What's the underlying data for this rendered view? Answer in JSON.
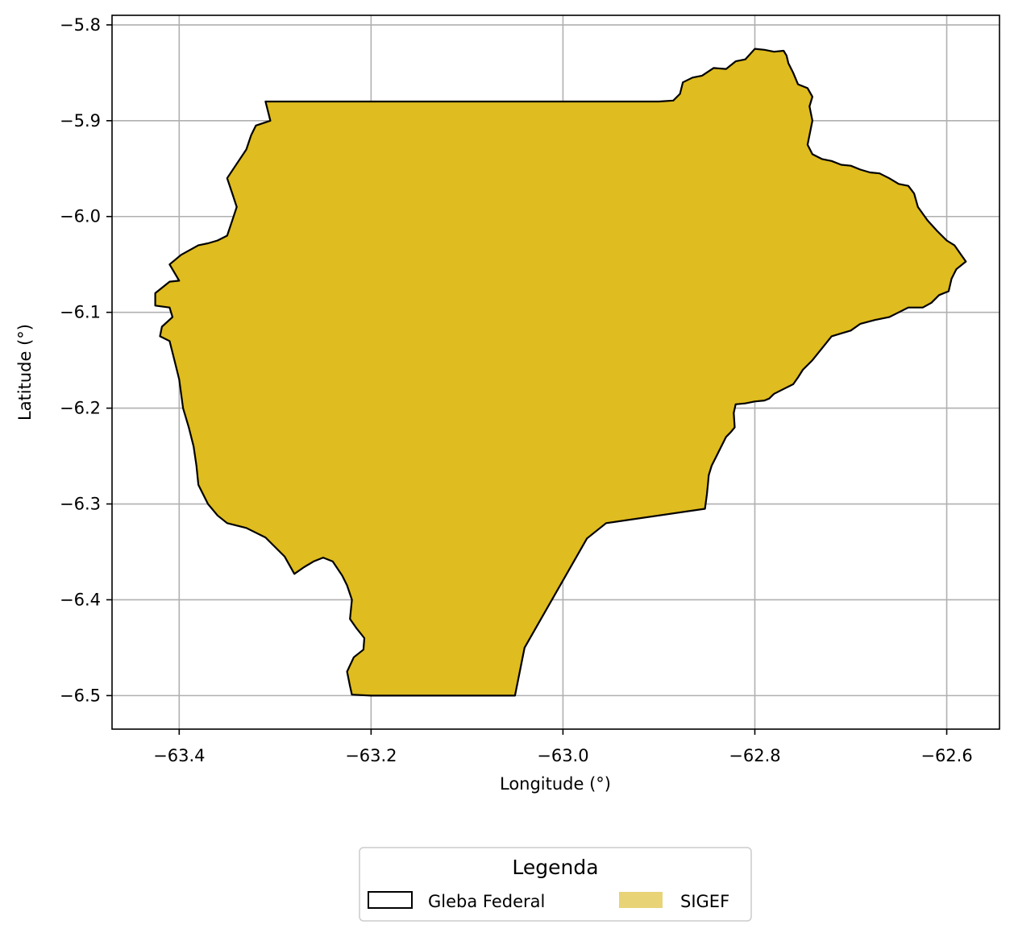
{
  "chart_data": {
    "type": "map",
    "xlabel": "Longitude (°)",
    "ylabel": "Latitude (°)",
    "xlim": [
      -63.47,
      -62.545
    ],
    "ylim": [
      -6.535,
      -5.79
    ],
    "xticks": [
      -63.4,
      -63.2,
      -63.0,
      -62.8,
      -62.6
    ],
    "yticks": [
      -5.8,
      -5.9,
      -6.0,
      -6.1,
      -6.2,
      -6.3,
      -6.4,
      -6.5
    ],
    "xtick_labels": [
      "−63.4",
      "−63.2",
      "−63.0",
      "−62.8",
      "−62.6"
    ],
    "ytick_labels": [
      "−5.8",
      "−5.9",
      "−6.0",
      "−6.1",
      "−6.2",
      "−6.3",
      "−6.4",
      "−6.5"
    ],
    "grid": true,
    "legend": {
      "title": "Legenda",
      "placement": "bottom-center, below axes",
      "entries": [
        {
          "label": "Gleba Federal",
          "style": "outline",
          "color": "#000000"
        },
        {
          "label": "SIGEF",
          "style": "fill",
          "color": "#e8d377"
        }
      ]
    },
    "polygon": {
      "name": "Gleba Federal",
      "fill": "#dfbc1f",
      "stroke": "#000000",
      "coords": [
        [
          -63.31,
          -5.88
        ],
        [
          -62.9,
          -5.88
        ],
        [
          -62.885,
          -5.879
        ],
        [
          -62.878,
          -5.872
        ],
        [
          -62.875,
          -5.86
        ],
        [
          -62.865,
          -5.855
        ],
        [
          -62.855,
          -5.853
        ],
        [
          -62.843,
          -5.845
        ],
        [
          -62.83,
          -5.846
        ],
        [
          -62.82,
          -5.838
        ],
        [
          -62.81,
          -5.836
        ],
        [
          -62.8,
          -5.825
        ],
        [
          -62.79,
          -5.826
        ],
        [
          -62.78,
          -5.828
        ],
        [
          -62.77,
          -5.827
        ],
        [
          -62.767,
          -5.832
        ],
        [
          -62.765,
          -5.84
        ],
        [
          -62.76,
          -5.85
        ],
        [
          -62.755,
          -5.862
        ],
        [
          -62.745,
          -5.866
        ],
        [
          -62.74,
          -5.875
        ],
        [
          -62.743,
          -5.885
        ],
        [
          -62.74,
          -5.9
        ],
        [
          -62.742,
          -5.91
        ],
        [
          -62.745,
          -5.925
        ],
        [
          -62.74,
          -5.935
        ],
        [
          -62.73,
          -5.94
        ],
        [
          -62.72,
          -5.942
        ],
        [
          -62.71,
          -5.946
        ],
        [
          -62.7,
          -5.947
        ],
        [
          -62.69,
          -5.951
        ],
        [
          -62.68,
          -5.954
        ],
        [
          -62.67,
          -5.955
        ],
        [
          -62.66,
          -5.96
        ],
        [
          -62.65,
          -5.966
        ],
        [
          -62.64,
          -5.968
        ],
        [
          -62.634,
          -5.976
        ],
        [
          -62.63,
          -5.99
        ],
        [
          -62.62,
          -6.004
        ],
        [
          -62.61,
          -6.015
        ],
        [
          -62.6,
          -6.025
        ],
        [
          -62.592,
          -6.03
        ],
        [
          -62.585,
          -6.04
        ],
        [
          -62.58,
          -6.047
        ],
        [
          -62.59,
          -6.055
        ],
        [
          -62.595,
          -6.065
        ],
        [
          -62.598,
          -6.078
        ],
        [
          -62.608,
          -6.082
        ],
        [
          -62.616,
          -6.09
        ],
        [
          -62.625,
          -6.095
        ],
        [
          -62.64,
          -6.095
        ],
        [
          -62.65,
          -6.1
        ],
        [
          -62.66,
          -6.105
        ],
        [
          -62.675,
          -6.108
        ],
        [
          -62.69,
          -6.112
        ],
        [
          -62.7,
          -6.119
        ],
        [
          -62.71,
          -6.122
        ],
        [
          -62.72,
          -6.125
        ],
        [
          -62.728,
          -6.135
        ],
        [
          -62.74,
          -6.15
        ],
        [
          -62.75,
          -6.16
        ],
        [
          -62.755,
          -6.168
        ],
        [
          -62.76,
          -6.175
        ],
        [
          -62.77,
          -6.18
        ],
        [
          -62.78,
          -6.185
        ],
        [
          -62.785,
          -6.19
        ],
        [
          -62.79,
          -6.192
        ],
        [
          -62.8,
          -6.193
        ],
        [
          -62.81,
          -6.195
        ],
        [
          -62.82,
          -6.196
        ],
        [
          -62.822,
          -6.205
        ],
        [
          -62.821,
          -6.22
        ],
        [
          -62.825,
          -6.225
        ],
        [
          -62.83,
          -6.23
        ],
        [
          -62.835,
          -6.24
        ],
        [
          -62.84,
          -6.25
        ],
        [
          -62.845,
          -6.26
        ],
        [
          -62.848,
          -6.27
        ],
        [
          -62.849,
          -6.28
        ],
        [
          -62.85,
          -6.29
        ],
        [
          -62.852,
          -6.305
        ],
        [
          -62.955,
          -6.32
        ],
        [
          -62.975,
          -6.336
        ],
        [
          -63.04,
          -6.45
        ],
        [
          -63.05,
          -6.5
        ],
        [
          -63.2,
          -6.5
        ],
        [
          -63.22,
          -6.499
        ],
        [
          -63.222,
          -6.49
        ],
        [
          -63.225,
          -6.475
        ],
        [
          -63.218,
          -6.46
        ],
        [
          -63.208,
          -6.452
        ],
        [
          -63.207,
          -6.44
        ],
        [
          -63.215,
          -6.43
        ],
        [
          -63.222,
          -6.42
        ],
        [
          -63.22,
          -6.4
        ],
        [
          -63.225,
          -6.385
        ],
        [
          -63.23,
          -6.375
        ],
        [
          -63.24,
          -6.36
        ],
        [
          -63.25,
          -6.356
        ],
        [
          -63.26,
          -6.36
        ],
        [
          -63.27,
          -6.366
        ],
        [
          -63.28,
          -6.373
        ],
        [
          -63.29,
          -6.355
        ],
        [
          -63.3,
          -6.345
        ],
        [
          -63.31,
          -6.335
        ],
        [
          -63.33,
          -6.325
        ],
        [
          -63.35,
          -6.32
        ],
        [
          -63.36,
          -6.312
        ],
        [
          -63.37,
          -6.3
        ],
        [
          -63.38,
          -6.28
        ],
        [
          -63.382,
          -6.26
        ],
        [
          -63.385,
          -6.24
        ],
        [
          -63.39,
          -6.22
        ],
        [
          -63.396,
          -6.2
        ],
        [
          -63.4,
          -6.17
        ],
        [
          -63.405,
          -6.15
        ],
        [
          -63.41,
          -6.13
        ],
        [
          -63.42,
          -6.125
        ],
        [
          -63.418,
          -6.115
        ],
        [
          -63.407,
          -6.105
        ],
        [
          -63.41,
          -6.095
        ],
        [
          -63.425,
          -6.093
        ],
        [
          -63.425,
          -6.08
        ],
        [
          -63.41,
          -6.068
        ],
        [
          -63.4,
          -6.067
        ],
        [
          -63.41,
          -6.05
        ],
        [
          -63.398,
          -6.04
        ],
        [
          -63.38,
          -6.03
        ],
        [
          -63.37,
          -6.028
        ],
        [
          -63.36,
          -6.025
        ],
        [
          -63.35,
          -6.02
        ],
        [
          -63.345,
          -6.005
        ],
        [
          -63.34,
          -5.99
        ],
        [
          -63.345,
          -5.975
        ],
        [
          -63.35,
          -5.96
        ],
        [
          -63.34,
          -5.945
        ],
        [
          -63.33,
          -5.93
        ],
        [
          -63.325,
          -5.915
        ],
        [
          -63.32,
          -5.905
        ],
        [
          -63.305,
          -5.9
        ],
        [
          -63.31,
          -5.88
        ]
      ]
    }
  }
}
